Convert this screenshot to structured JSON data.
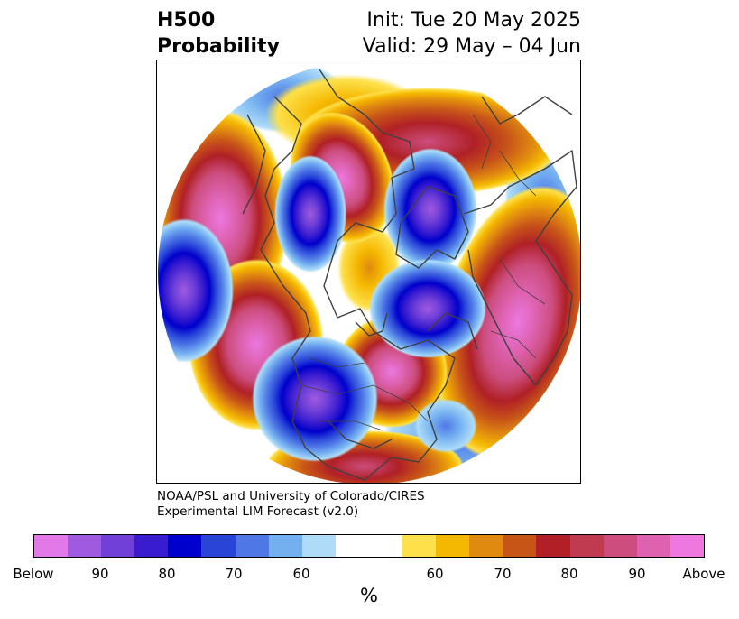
{
  "header": {
    "title_line1": "H500",
    "title_line2": "Probability",
    "init": "Init: Tue 20 May 2025",
    "valid": "Valid: 29 May – 04 Jun"
  },
  "credit": {
    "line1": "NOAA/PSL and University of Colorado/CIRES",
    "line2": "Experimental LIM Forecast (v2.0)"
  },
  "colorbar": {
    "unit": "%",
    "colors": [
      "#e17ae6",
      "#a05ae0",
      "#7040d8",
      "#3a1cd0",
      "#0000cc",
      "#2845d8",
      "#4f78e6",
      "#74b0f0",
      "#aedcf8",
      "#ffffff",
      "#ffffff",
      "#fde04a",
      "#f5b800",
      "#e08a10",
      "#c85518",
      "#b02026",
      "#c03a50",
      "#cc4d7e",
      "#de62b0",
      "#ec78e0"
    ],
    "tick_labels": [
      "Below",
      "90",
      "80",
      "70",
      "60",
      "60",
      "70",
      "80",
      "90",
      "Above"
    ]
  },
  "map": {
    "projection": "north-polar-stereographic",
    "variable": "H500 probability",
    "features": [
      "coastlines",
      "country-borders",
      "state-borders"
    ]
  }
}
